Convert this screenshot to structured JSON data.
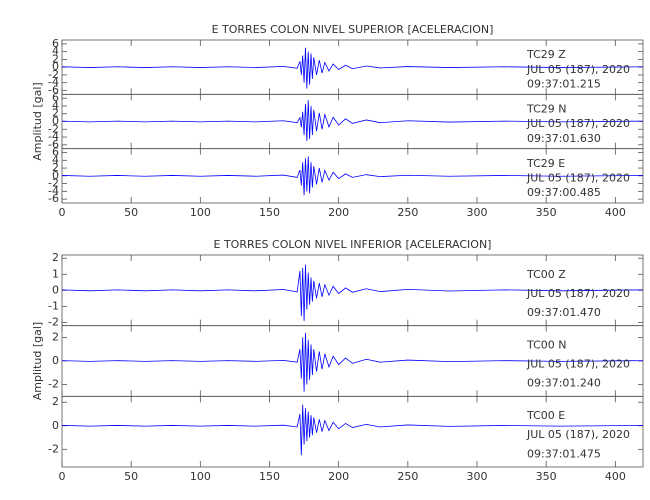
{
  "chart_data": [
    {
      "type": "line",
      "title": "E TORRES COLON NIVEL SUPERIOR [ACELERACION]",
      "ylabel": "Amplitud [gal]",
      "xlim": [
        0,
        420
      ],
      "xticks": [
        0,
        50,
        100,
        150,
        200,
        250,
        300,
        350,
        400
      ],
      "x": [
        0,
        20,
        40,
        60,
        80,
        100,
        120,
        140,
        160,
        170,
        172,
        173,
        174,
        175,
        176,
        177,
        178,
        179,
        180,
        181,
        182,
        184,
        186,
        188,
        190,
        193,
        196,
        200,
        205,
        210,
        220,
        230,
        250,
        280,
        320,
        360,
        420
      ],
      "series": [
        {
          "name": "TC29   Z",
          "date": "JUL 05 (187), 2020",
          "time": "09:37:01.215",
          "color": "#0000ff",
          "ylim": [
            -7,
            7
          ],
          "yticks": [
            -6,
            -4,
            -2,
            0,
            2,
            4,
            6
          ],
          "values": [
            0.1,
            -0.1,
            0.1,
            -0.1,
            0.1,
            -0.1,
            0.1,
            -0.1,
            0.2,
            -0.3,
            1.5,
            -2,
            3,
            -4,
            5,
            -5.5,
            4,
            -4.5,
            3.5,
            -3,
            2.5,
            -2,
            1.8,
            -1.5,
            1.2,
            -1,
            0.8,
            -0.6,
            0.5,
            -0.4,
            0.3,
            -0.2,
            0.15,
            -0.1,
            0.1,
            -0.1,
            0.1
          ]
        },
        {
          "name": "TC29   N",
          "date": "JUL 05 (187), 2020",
          "time": "09:37:01.630",
          "color": "#0000ff",
          "ylim": [
            -7,
            7
          ],
          "yticks": [
            -6,
            -4,
            -2,
            0,
            2,
            4,
            6
          ],
          "values": [
            0.1,
            -0.1,
            0.1,
            -0.1,
            0.1,
            -0.1,
            0.1,
            -0.1,
            0.2,
            -0.3,
            1,
            -1.5,
            2.5,
            -3.5,
            4.5,
            -5,
            5.5,
            -4.5,
            4,
            -3.5,
            3,
            -2.5,
            2.2,
            -2,
            1.8,
            -1.4,
            1.1,
            -0.9,
            0.7,
            -0.5,
            0.4,
            -0.3,
            0.2,
            -0.15,
            0.1,
            -0.1,
            0.1
          ]
        },
        {
          "name": "TC29   E",
          "date": "JUL 05 (187), 2020",
          "time": "09:37:00.485",
          "color": "#0000ff",
          "ylim": [
            -7,
            7
          ],
          "yticks": [
            -6,
            -4,
            -2,
            0,
            2,
            4,
            6
          ],
          "values": [
            0.1,
            -0.1,
            0.1,
            -0.1,
            0.1,
            -0.1,
            0.1,
            -0.1,
            0.2,
            -0.4,
            1.5,
            -2.5,
            3.5,
            -5,
            4.5,
            -4,
            5,
            -4.5,
            3.5,
            -3,
            2.5,
            -2.2,
            2,
            -1.7,
            1.4,
            -1.1,
            0.9,
            -0.7,
            0.5,
            -0.4,
            0.3,
            -0.2,
            0.15,
            -0.1,
            0.1,
            -0.1,
            0.1
          ]
        }
      ]
    },
    {
      "type": "line",
      "title": "E TORRES COLON NIVEL INFERIOR [ACELERACION]",
      "ylabel": "Amplitud [gal]",
      "xlim": [
        0,
        420
      ],
      "xticks": [
        0,
        50,
        100,
        150,
        200,
        250,
        300,
        350,
        400
      ],
      "x": [
        0,
        20,
        40,
        60,
        80,
        100,
        120,
        140,
        160,
        170,
        172,
        173,
        174,
        175,
        176,
        177,
        178,
        179,
        180,
        181,
        182,
        184,
        186,
        188,
        190,
        193,
        196,
        200,
        205,
        210,
        220,
        230,
        250,
        280,
        320,
        360,
        420
      ],
      "series": [
        {
          "name": "TC00   Z",
          "date": "JUL 05 (187), 2020",
          "time": "09:37:01.470",
          "color": "#0000ff",
          "ylim": [
            -2.2,
            2.2
          ],
          "yticks": [
            -2,
            -1,
            0,
            1,
            2
          ],
          "values": [
            0.03,
            -0.03,
            0.03,
            -0.03,
            0.03,
            -0.03,
            0.03,
            -0.03,
            0.05,
            -0.1,
            1.2,
            -1.6,
            1.4,
            -1.9,
            1.6,
            -1.2,
            1.1,
            -0.9,
            0.8,
            -0.7,
            0.6,
            -0.5,
            0.45,
            -0.4,
            0.35,
            -0.3,
            0.25,
            -0.2,
            0.15,
            -0.12,
            0.1,
            -0.08,
            0.06,
            -0.04,
            0.03,
            -0.03,
            0.03
          ]
        },
        {
          "name": "TC00   N",
          "date": "JUL 05 (187), 2020",
          "time": "09:37:01.240",
          "color": "#0000ff",
          "ylim": [
            -3,
            3
          ],
          "yticks": [
            -2,
            0,
            2
          ],
          "values": [
            0.03,
            -0.03,
            0.03,
            -0.03,
            0.03,
            -0.03,
            0.03,
            -0.03,
            0.05,
            -0.1,
            1,
            -1.5,
            2,
            -2.6,
            2.4,
            -2,
            1.8,
            -1.6,
            1.4,
            -1.2,
            1,
            -0.9,
            0.8,
            -0.7,
            0.6,
            -0.5,
            0.4,
            -0.3,
            0.25,
            -0.2,
            0.15,
            -0.1,
            0.08,
            -0.05,
            0.03,
            -0.03,
            0.03
          ]
        },
        {
          "name": "TC00   E",
          "date": "JUL 05 (187), 2020",
          "time": "09:37:01.475",
          "color": "#0000ff",
          "ylim": [
            -3.5,
            2.5
          ],
          "yticks": [
            -2,
            0,
            2
          ],
          "values": [
            0.03,
            -0.03,
            0.03,
            -0.03,
            0.03,
            -0.03,
            0.03,
            -0.03,
            0.05,
            -0.1,
            1,
            -2.5,
            1.8,
            -1.6,
            1.5,
            -1.3,
            1.2,
            -1,
            0.9,
            -0.8,
            0.7,
            -0.6,
            0.55,
            -0.5,
            0.45,
            -0.4,
            0.3,
            -0.25,
            0.2,
            -0.15,
            0.12,
            -0.1,
            0.07,
            -0.05,
            0.03,
            -0.03,
            0.03
          ]
        }
      ]
    }
  ]
}
